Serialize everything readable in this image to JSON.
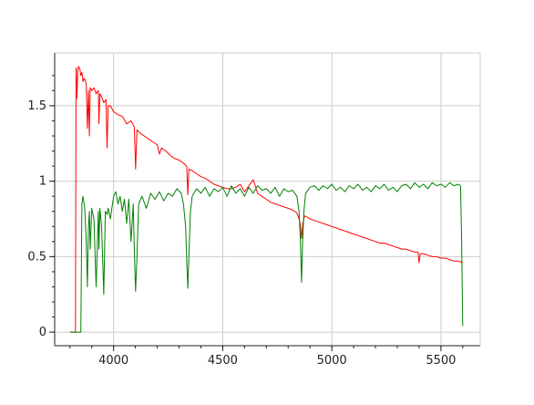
{
  "chart_data": {
    "type": "line",
    "title": "",
    "xlabel": "",
    "ylabel": "",
    "xlim": [
      3730,
      5680
    ],
    "ylim": [
      -0.09,
      1.85
    ],
    "grid": true,
    "legend": "none",
    "x_ticks": [
      {
        "value": 4000,
        "label": "4000"
      },
      {
        "value": 4500,
        "label": "4500"
      },
      {
        "value": 5000,
        "label": "5000"
      },
      {
        "value": 5500,
        "label": "5500"
      }
    ],
    "y_ticks": [
      {
        "value": 0,
        "label": "0"
      },
      {
        "value": 0.5,
        "label": "0.5"
      },
      {
        "value": 1,
        "label": "1"
      },
      {
        "value": 1.5,
        "label": "1.5"
      }
    ],
    "series": [
      {
        "color": "#ff0000",
        "x": [
          3800,
          3825,
          3828,
          3832,
          3836,
          3840,
          3846,
          3850,
          3855,
          3860,
          3865,
          3870,
          3875,
          3880,
          3885,
          3889,
          3893,
          3900,
          3910,
          3920,
          3930,
          3933,
          3937,
          3945,
          3955,
          3965,
          3970,
          3975,
          3985,
          4000,
          4020,
          4040,
          4060,
          4080,
          4095,
          4101,
          4107,
          4120,
          4140,
          4160,
          4180,
          4200,
          4210,
          4220,
          4240,
          4260,
          4280,
          4300,
          4320,
          4335,
          4340,
          4345,
          4360,
          4380,
          4400,
          4420,
          4440,
          4460,
          4480,
          4500,
          4520,
          4540,
          4560,
          4580,
          4600,
          4620,
          4640,
          4660,
          4680,
          4700,
          4720,
          4740,
          4760,
          4780,
          4800,
          4820,
          4840,
          4850,
          4855,
          4861,
          4867,
          4875,
          4890,
          4900,
          4920,
          4940,
          4960,
          4980,
          5000,
          5020,
          5040,
          5060,
          5080,
          5100,
          5120,
          5140,
          5160,
          5180,
          5200,
          5220,
          5240,
          5260,
          5280,
          5300,
          5320,
          5340,
          5360,
          5380,
          5395,
          5400,
          5405,
          5420,
          5440,
          5460,
          5480,
          5500,
          5520,
          5540,
          5560,
          5580,
          5600
        ],
        "y": [
          0,
          0,
          1.75,
          1.55,
          1.74,
          1.76,
          1.74,
          1.7,
          1.72,
          1.66,
          1.68,
          1.67,
          1.64,
          1.35,
          1.6,
          1.3,
          1.62,
          1.6,
          1.62,
          1.58,
          1.6,
          1.38,
          1.58,
          1.56,
          1.52,
          1.54,
          1.22,
          1.5,
          1.5,
          1.46,
          1.44,
          1.43,
          1.38,
          1.4,
          1.36,
          1.08,
          1.34,
          1.32,
          1.3,
          1.28,
          1.26,
          1.24,
          1.18,
          1.22,
          1.2,
          1.17,
          1.15,
          1.14,
          1.12,
          1.1,
          0.91,
          1.08,
          1.07,
          1.05,
          1.03,
          1.02,
          1.0,
          0.98,
          0.97,
          0.96,
          0.95,
          0.95,
          0.96,
          0.98,
          0.93,
          0.97,
          1.01,
          0.92,
          0.9,
          0.88,
          0.86,
          0.85,
          0.84,
          0.83,
          0.82,
          0.81,
          0.79,
          0.75,
          0.72,
          0.62,
          0.72,
          0.77,
          0.76,
          0.75,
          0.74,
          0.73,
          0.72,
          0.71,
          0.7,
          0.69,
          0.68,
          0.67,
          0.66,
          0.65,
          0.64,
          0.63,
          0.62,
          0.61,
          0.6,
          0.59,
          0.59,
          0.58,
          0.57,
          0.56,
          0.55,
          0.55,
          0.54,
          0.53,
          0.53,
          0.46,
          0.52,
          0.52,
          0.51,
          0.5,
          0.5,
          0.49,
          0.49,
          0.48,
          0.47,
          0.47,
          0.46
        ]
      },
      {
        "color": "#008000",
        "x": [
          3800,
          3850,
          3855,
          3860,
          3868,
          3875,
          3880,
          3885,
          3889,
          3893,
          3900,
          3910,
          3920,
          3930,
          3933,
          3937,
          3945,
          3955,
          3962,
          3970,
          3975,
          3985,
          4000,
          4010,
          4020,
          4030,
          4040,
          4050,
          4060,
          4070,
          4080,
          4090,
          4095,
          4101,
          4107,
          4115,
          4130,
          4150,
          4170,
          4190,
          4210,
          4230,
          4250,
          4270,
          4290,
          4310,
          4320,
          4330,
          4336,
          4340,
          4345,
          4352,
          4360,
          4380,
          4400,
          4420,
          4440,
          4460,
          4480,
          4500,
          4520,
          4540,
          4560,
          4580,
          4600,
          4620,
          4640,
          4660,
          4680,
          4700,
          4720,
          4740,
          4760,
          4780,
          4800,
          4820,
          4840,
          4850,
          4856,
          4861,
          4866,
          4872,
          4880,
          4900,
          4920,
          4940,
          4960,
          4980,
          5000,
          5020,
          5040,
          5060,
          5080,
          5100,
          5120,
          5140,
          5160,
          5180,
          5200,
          5220,
          5240,
          5260,
          5280,
          5300,
          5320,
          5340,
          5360,
          5380,
          5400,
          5420,
          5440,
          5460,
          5480,
          5500,
          5520,
          5540,
          5560,
          5580,
          5590,
          5595,
          5600
        ],
        "y": [
          0,
          0,
          0.85,
          0.9,
          0.82,
          0.6,
          0.3,
          0.7,
          0.8,
          0.55,
          0.82,
          0.75,
          0.3,
          0.8,
          0.55,
          0.82,
          0.7,
          0.25,
          0.8,
          0.78,
          0.82,
          0.75,
          0.9,
          0.93,
          0.85,
          0.9,
          0.8,
          0.88,
          0.72,
          0.88,
          0.6,
          0.85,
          0.55,
          0.27,
          0.5,
          0.85,
          0.9,
          0.82,
          0.92,
          0.88,
          0.93,
          0.87,
          0.92,
          0.9,
          0.95,
          0.92,
          0.85,
          0.7,
          0.45,
          0.29,
          0.5,
          0.8,
          0.9,
          0.95,
          0.92,
          0.96,
          0.9,
          0.95,
          0.93,
          0.96,
          0.9,
          0.97,
          0.92,
          0.95,
          0.9,
          0.96,
          0.92,
          0.97,
          0.94,
          0.95,
          0.92,
          0.96,
          0.9,
          0.95,
          0.93,
          0.94,
          0.9,
          0.8,
          0.6,
          0.33,
          0.6,
          0.8,
          0.92,
          0.96,
          0.97,
          0.94,
          0.97,
          0.95,
          0.98,
          0.94,
          0.96,
          0.93,
          0.97,
          0.95,
          0.98,
          0.94,
          0.96,
          0.93,
          0.97,
          0.95,
          0.98,
          0.94,
          0.96,
          0.93,
          0.97,
          0.98,
          0.95,
          0.99,
          0.96,
          0.98,
          0.95,
          0.99,
          0.97,
          0.98,
          0.96,
          0.99,
          0.97,
          0.98,
          0.97,
          0.6,
          0.04
        ]
      }
    ]
  }
}
